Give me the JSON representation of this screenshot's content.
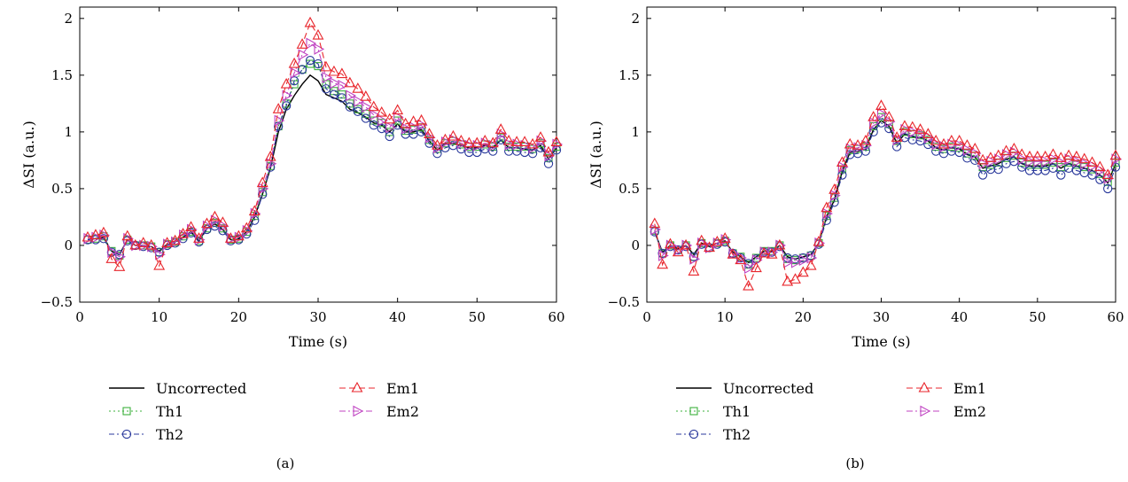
{
  "chart_data": [
    {
      "type": "line",
      "panel_label": "(a)",
      "xlabel": "Time (s)",
      "ylabel": "ΔSI (a.u.)",
      "xlim": [
        0,
        60
      ],
      "ylim": [
        -0.5,
        2.1
      ],
      "xticks": [
        0,
        10,
        20,
        30,
        40,
        50,
        60
      ],
      "yticks": [
        -0.5,
        0,
        0.5,
        1,
        1.5,
        2
      ],
      "ytick_labels": [
        "−0.5",
        "0",
        "0.5",
        "1",
        "1.5",
        "2"
      ],
      "grid": false,
      "legend_position": "bottom",
      "x": [
        1,
        2,
        3,
        4,
        5,
        6,
        7,
        8,
        9,
        10,
        11,
        12,
        13,
        14,
        15,
        16,
        17,
        18,
        19,
        20,
        21,
        22,
        23,
        24,
        25,
        26,
        27,
        28,
        29,
        30,
        31,
        32,
        33,
        34,
        35,
        36,
        37,
        38,
        39,
        40,
        41,
        42,
        43,
        44,
        45,
        46,
        47,
        48,
        49,
        50,
        51,
        52,
        53,
        54,
        55,
        56,
        57,
        58,
        59,
        60
      ],
      "series": [
        {
          "name": "Uncorrected",
          "color": "#000000",
          "dash": "",
          "marker": "none",
          "values": [
            0.05,
            0.06,
            0.07,
            -0.05,
            -0.08,
            0.05,
            0.0,
            0.0,
            -0.01,
            -0.05,
            0.01,
            0.03,
            0.07,
            0.12,
            0.04,
            0.15,
            0.19,
            0.14,
            0.05,
            0.06,
            0.12,
            0.25,
            0.45,
            0.68,
            1.0,
            1.2,
            1.32,
            1.42,
            1.5,
            1.45,
            1.33,
            1.3,
            1.27,
            1.2,
            1.17,
            1.13,
            1.08,
            1.06,
            1.0,
            1.07,
            1.0,
            1.0,
            1.02,
            0.92,
            0.84,
            0.9,
            0.9,
            0.88,
            0.86,
            0.86,
            0.88,
            0.86,
            0.93,
            0.86,
            0.86,
            0.85,
            0.84,
            0.88,
            0.76,
            0.86
          ]
        },
        {
          "name": "Th1",
          "color": "#3db03d",
          "dash": "2,3",
          "marker": "square",
          "values": [
            0.05,
            0.06,
            0.08,
            -0.05,
            -0.09,
            0.05,
            0.0,
            0.0,
            -0.01,
            -0.06,
            0.01,
            0.03,
            0.08,
            0.12,
            0.04,
            0.15,
            0.2,
            0.15,
            0.05,
            0.06,
            0.12,
            0.26,
            0.47,
            0.7,
            1.05,
            1.25,
            1.42,
            1.55,
            1.6,
            1.58,
            1.42,
            1.36,
            1.33,
            1.25,
            1.2,
            1.16,
            1.1,
            1.08,
            1.0,
            1.1,
            1.01,
            1.02,
            1.04,
            0.93,
            0.85,
            0.9,
            0.92,
            0.89,
            0.87,
            0.87,
            0.89,
            0.87,
            0.95,
            0.87,
            0.87,
            0.87,
            0.85,
            0.9,
            0.77,
            0.87
          ]
        },
        {
          "name": "Th2",
          "color": "#2b3a9c",
          "dash": "6,3,2,3",
          "marker": "circle",
          "values": [
            0.05,
            0.05,
            0.06,
            -0.06,
            -0.08,
            0.04,
            0.0,
            -0.01,
            -0.02,
            -0.06,
            0.0,
            0.02,
            0.06,
            0.11,
            0.03,
            0.14,
            0.17,
            0.13,
            0.04,
            0.05,
            0.1,
            0.22,
            0.45,
            0.69,
            1.05,
            1.23,
            1.45,
            1.55,
            1.63,
            1.6,
            1.38,
            1.33,
            1.3,
            1.22,
            1.18,
            1.12,
            1.06,
            1.03,
            0.96,
            1.06,
            0.98,
            0.98,
            1.0,
            0.9,
            0.81,
            0.86,
            0.88,
            0.85,
            0.82,
            0.82,
            0.85,
            0.83,
            0.93,
            0.83,
            0.83,
            0.82,
            0.81,
            0.86,
            0.72,
            0.84
          ]
        },
        {
          "name": "Em1",
          "color": "#e8262c",
          "dash": "7,4",
          "marker": "triangle-up",
          "values": [
            0.07,
            0.09,
            0.11,
            -0.12,
            -0.19,
            0.08,
            0.0,
            0.02,
            0.0,
            -0.18,
            0.02,
            0.04,
            0.1,
            0.16,
            0.06,
            0.19,
            0.25,
            0.2,
            0.06,
            0.08,
            0.15,
            0.3,
            0.55,
            0.78,
            1.2,
            1.42,
            1.6,
            1.77,
            1.96,
            1.85,
            1.57,
            1.53,
            1.51,
            1.43,
            1.38,
            1.31,
            1.22,
            1.17,
            1.11,
            1.19,
            1.07,
            1.09,
            1.1,
            0.98,
            0.88,
            0.93,
            0.96,
            0.92,
            0.9,
            0.9,
            0.92,
            0.9,
            1.02,
            0.92,
            0.91,
            0.91,
            0.89,
            0.95,
            0.82,
            0.91
          ]
        },
        {
          "name": "Em2",
          "color": "#c043c2",
          "dash": "7,3,2,3",
          "marker": "triangle-right",
          "values": [
            0.06,
            0.07,
            0.09,
            -0.06,
            -0.1,
            0.06,
            0.0,
            0.0,
            -0.01,
            -0.08,
            0.01,
            0.03,
            0.09,
            0.14,
            0.05,
            0.17,
            0.22,
            0.17,
            0.06,
            0.07,
            0.13,
            0.28,
            0.5,
            0.72,
            1.1,
            1.32,
            1.52,
            1.68,
            1.78,
            1.73,
            1.48,
            1.43,
            1.41,
            1.32,
            1.27,
            1.22,
            1.15,
            1.1,
            1.04,
            1.13,
            1.03,
            1.04,
            1.06,
            0.95,
            0.86,
            0.91,
            0.93,
            0.9,
            0.88,
            0.88,
            0.9,
            0.88,
            0.98,
            0.89,
            0.89,
            0.88,
            0.86,
            0.92,
            0.79,
            0.89
          ]
        }
      ]
    },
    {
      "type": "line",
      "panel_label": "(b)",
      "xlabel": "Time (s)",
      "ylabel": "ΔSI (a.u.)",
      "xlim": [
        0,
        60
      ],
      "ylim": [
        -0.5,
        2.1
      ],
      "xticks": [
        0,
        10,
        20,
        30,
        40,
        50,
        60
      ],
      "yticks": [
        -0.5,
        0,
        0.5,
        1,
        1.5,
        2
      ],
      "ytick_labels": [
        "−0.5",
        "0",
        "0.5",
        "1",
        "1.5",
        "2"
      ],
      "grid": false,
      "legend_position": "bottom",
      "x": [
        1,
        2,
        3,
        4,
        5,
        6,
        7,
        8,
        9,
        10,
        11,
        12,
        13,
        14,
        15,
        16,
        17,
        18,
        19,
        20,
        21,
        22,
        23,
        24,
        25,
        26,
        27,
        28,
        29,
        30,
        31,
        32,
        33,
        34,
        35,
        36,
        37,
        38,
        39,
        40,
        41,
        42,
        43,
        44,
        45,
        46,
        47,
        48,
        49,
        50,
        51,
        52,
        53,
        54,
        55,
        56,
        57,
        58,
        59,
        60
      ],
      "series": [
        {
          "name": "Uncorrected",
          "color": "#000000",
          "dash": "",
          "marker": "none",
          "values": [
            0.12,
            -0.06,
            0.0,
            -0.03,
            0.0,
            -0.08,
            0.02,
            -0.01,
            0.02,
            0.04,
            -0.06,
            -0.1,
            -0.15,
            -0.1,
            -0.05,
            -0.05,
            0.0,
            -0.1,
            -0.12,
            -0.1,
            -0.08,
            0.02,
            0.25,
            0.4,
            0.65,
            0.82,
            0.83,
            0.85,
            1.02,
            1.1,
            1.05,
            0.9,
            0.98,
            0.96,
            0.95,
            0.92,
            0.86,
            0.84,
            0.86,
            0.85,
            0.8,
            0.78,
            0.68,
            0.7,
            0.72,
            0.76,
            0.78,
            0.72,
            0.7,
            0.7,
            0.7,
            0.72,
            0.68,
            0.72,
            0.7,
            0.68,
            0.66,
            0.62,
            0.55,
            0.72
          ]
        },
        {
          "name": "Th1",
          "color": "#3db03d",
          "dash": "2,3",
          "marker": "square",
          "values": [
            0.13,
            -0.07,
            0.0,
            -0.04,
            0.0,
            -0.1,
            0.02,
            -0.02,
            0.02,
            0.04,
            -0.07,
            -0.1,
            -0.17,
            -0.11,
            -0.05,
            -0.05,
            0.0,
            -0.12,
            -0.13,
            -0.11,
            -0.09,
            0.02,
            0.26,
            0.42,
            0.67,
            0.84,
            0.85,
            0.87,
            1.05,
            1.13,
            1.07,
            0.92,
            1.0,
            0.98,
            0.97,
            0.93,
            0.87,
            0.85,
            0.87,
            0.86,
            0.81,
            0.79,
            0.69,
            0.71,
            0.73,
            0.77,
            0.79,
            0.73,
            0.71,
            0.71,
            0.71,
            0.73,
            0.69,
            0.73,
            0.71,
            0.69,
            0.67,
            0.63,
            0.56,
            0.73
          ]
        },
        {
          "name": "Th2",
          "color": "#2b3a9c",
          "dash": "6,3,2,3",
          "marker": "circle",
          "values": [
            0.12,
            -0.07,
            -0.01,
            -0.04,
            -0.01,
            -0.1,
            0.01,
            -0.02,
            0.01,
            0.03,
            -0.07,
            -0.11,
            -0.16,
            -0.12,
            -0.06,
            -0.06,
            -0.01,
            -0.11,
            -0.12,
            -0.11,
            -0.09,
            0.01,
            0.22,
            0.38,
            0.62,
            0.8,
            0.81,
            0.83,
            1.0,
            1.08,
            1.03,
            0.87,
            0.95,
            0.93,
            0.92,
            0.89,
            0.83,
            0.81,
            0.83,
            0.82,
            0.77,
            0.75,
            0.62,
            0.67,
            0.67,
            0.72,
            0.74,
            0.69,
            0.66,
            0.66,
            0.66,
            0.68,
            0.62,
            0.68,
            0.66,
            0.64,
            0.62,
            0.58,
            0.5,
            0.69
          ]
        },
        {
          "name": "Em1",
          "color": "#e8262c",
          "dash": "7,4",
          "marker": "triangle-up",
          "values": [
            0.19,
            -0.17,
            0.01,
            -0.06,
            0.0,
            -0.23,
            0.04,
            -0.02,
            0.03,
            0.06,
            -0.08,
            -0.13,
            -0.36,
            -0.2,
            -0.07,
            -0.08,
            0.0,
            -0.32,
            -0.3,
            -0.24,
            -0.18,
            0.03,
            0.33,
            0.49,
            0.73,
            0.89,
            0.88,
            0.92,
            1.13,
            1.23,
            1.13,
            0.95,
            1.05,
            1.04,
            1.02,
            0.98,
            0.92,
            0.89,
            0.92,
            0.92,
            0.88,
            0.85,
            0.75,
            0.77,
            0.79,
            0.83,
            0.85,
            0.8,
            0.78,
            0.78,
            0.78,
            0.8,
            0.77,
            0.79,
            0.78,
            0.76,
            0.73,
            0.69,
            0.62,
            0.79
          ]
        },
        {
          "name": "Em2",
          "color": "#c043c2",
          "dash": "7,3,2,3",
          "marker": "triangle-right",
          "values": [
            0.14,
            -0.09,
            0.0,
            -0.04,
            0.0,
            -0.12,
            0.02,
            -0.02,
            0.02,
            0.05,
            -0.07,
            -0.11,
            -0.2,
            -0.13,
            -0.06,
            -0.06,
            0.0,
            -0.15,
            -0.15,
            -0.13,
            -0.11,
            0.02,
            0.28,
            0.44,
            0.69,
            0.85,
            0.86,
            0.88,
            1.08,
            1.16,
            1.09,
            0.93,
            1.02,
            1.0,
            0.98,
            0.95,
            0.89,
            0.87,
            0.89,
            0.88,
            0.84,
            0.81,
            0.72,
            0.74,
            0.76,
            0.8,
            0.82,
            0.76,
            0.74,
            0.74,
            0.74,
            0.76,
            0.73,
            0.76,
            0.74,
            0.72,
            0.7,
            0.66,
            0.59,
            0.76
          ]
        }
      ]
    }
  ]
}
